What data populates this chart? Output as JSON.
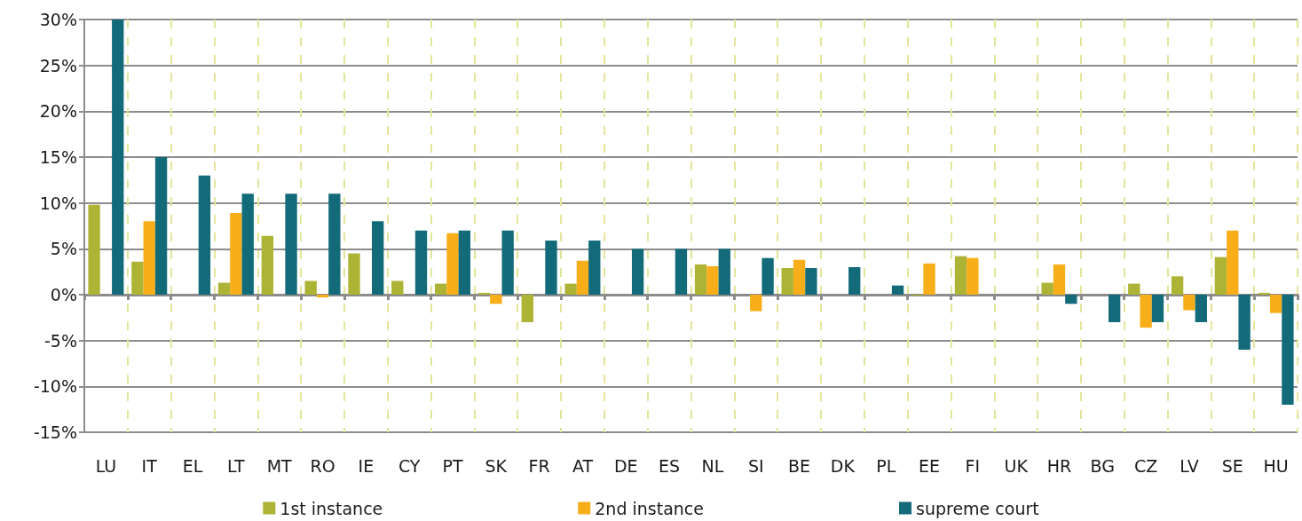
{
  "chart_data": {
    "type": "bar",
    "categories": [
      "LU",
      "IT",
      "EL",
      "LT",
      "MT",
      "RO",
      "IE",
      "CY",
      "PT",
      "SK",
      "FR",
      "AT",
      "DE",
      "ES",
      "NL",
      "SI",
      "BE",
      "DK",
      "PL",
      "EE",
      "FI",
      "UK",
      "HR",
      "BG",
      "CZ",
      "LV",
      "SE",
      "HU"
    ],
    "series": [
      {
        "name": "1st instance",
        "color": "#adb334",
        "values": [
          9.8,
          3.6,
          null,
          1.3,
          6.4,
          1.5,
          4.5,
          1.5,
          1.2,
          0.2,
          -3.0,
          1.2,
          null,
          null,
          3.3,
          null,
          2.9,
          null,
          null,
          -0.1,
          4.2,
          null,
          1.3,
          null,
          1.2,
          2.0,
          4.1,
          0.2
        ]
      },
      {
        "name": "2nd instance",
        "color": "#f7ae18",
        "values": [
          null,
          8.0,
          null,
          8.9,
          null,
          -0.3,
          null,
          null,
          6.7,
          -1.0,
          null,
          3.7,
          null,
          null,
          3.1,
          -1.8,
          3.8,
          null,
          null,
          3.4,
          4.0,
          null,
          3.3,
          null,
          -3.6,
          -1.7,
          7.0,
          -2.0
        ]
      },
      {
        "name": "supreme court",
        "color": "#136b7a",
        "values": [
          30,
          15,
          13,
          11,
          11,
          11,
          8,
          7,
          7.0,
          7.0,
          5.9,
          5.9,
          5,
          5,
          5,
          4.0,
          2.9,
          3.0,
          1.0,
          null,
          null,
          null,
          -1.0,
          -3.0,
          -3.0,
          -3.0,
          -6.0,
          -12.0
        ]
      }
    ],
    "ylim": [
      -15,
      30
    ],
    "yticks": [
      {
        "value": -15,
        "label": "-15%"
      },
      {
        "value": -10,
        "label": "-10%"
      },
      {
        "value": -5,
        "label": "-5%"
      },
      {
        "value": 0,
        "label": "0%"
      },
      {
        "value": 5,
        "label": "5%"
      },
      {
        "value": 10,
        "label": "10%"
      },
      {
        "value": 15,
        "label": "15%"
      },
      {
        "value": 20,
        "label": "20%"
      },
      {
        "value": 25,
        "label": "25%"
      },
      {
        "value": 30,
        "label": "30%"
      }
    ],
    "grid": true,
    "legend": "bottom"
  }
}
